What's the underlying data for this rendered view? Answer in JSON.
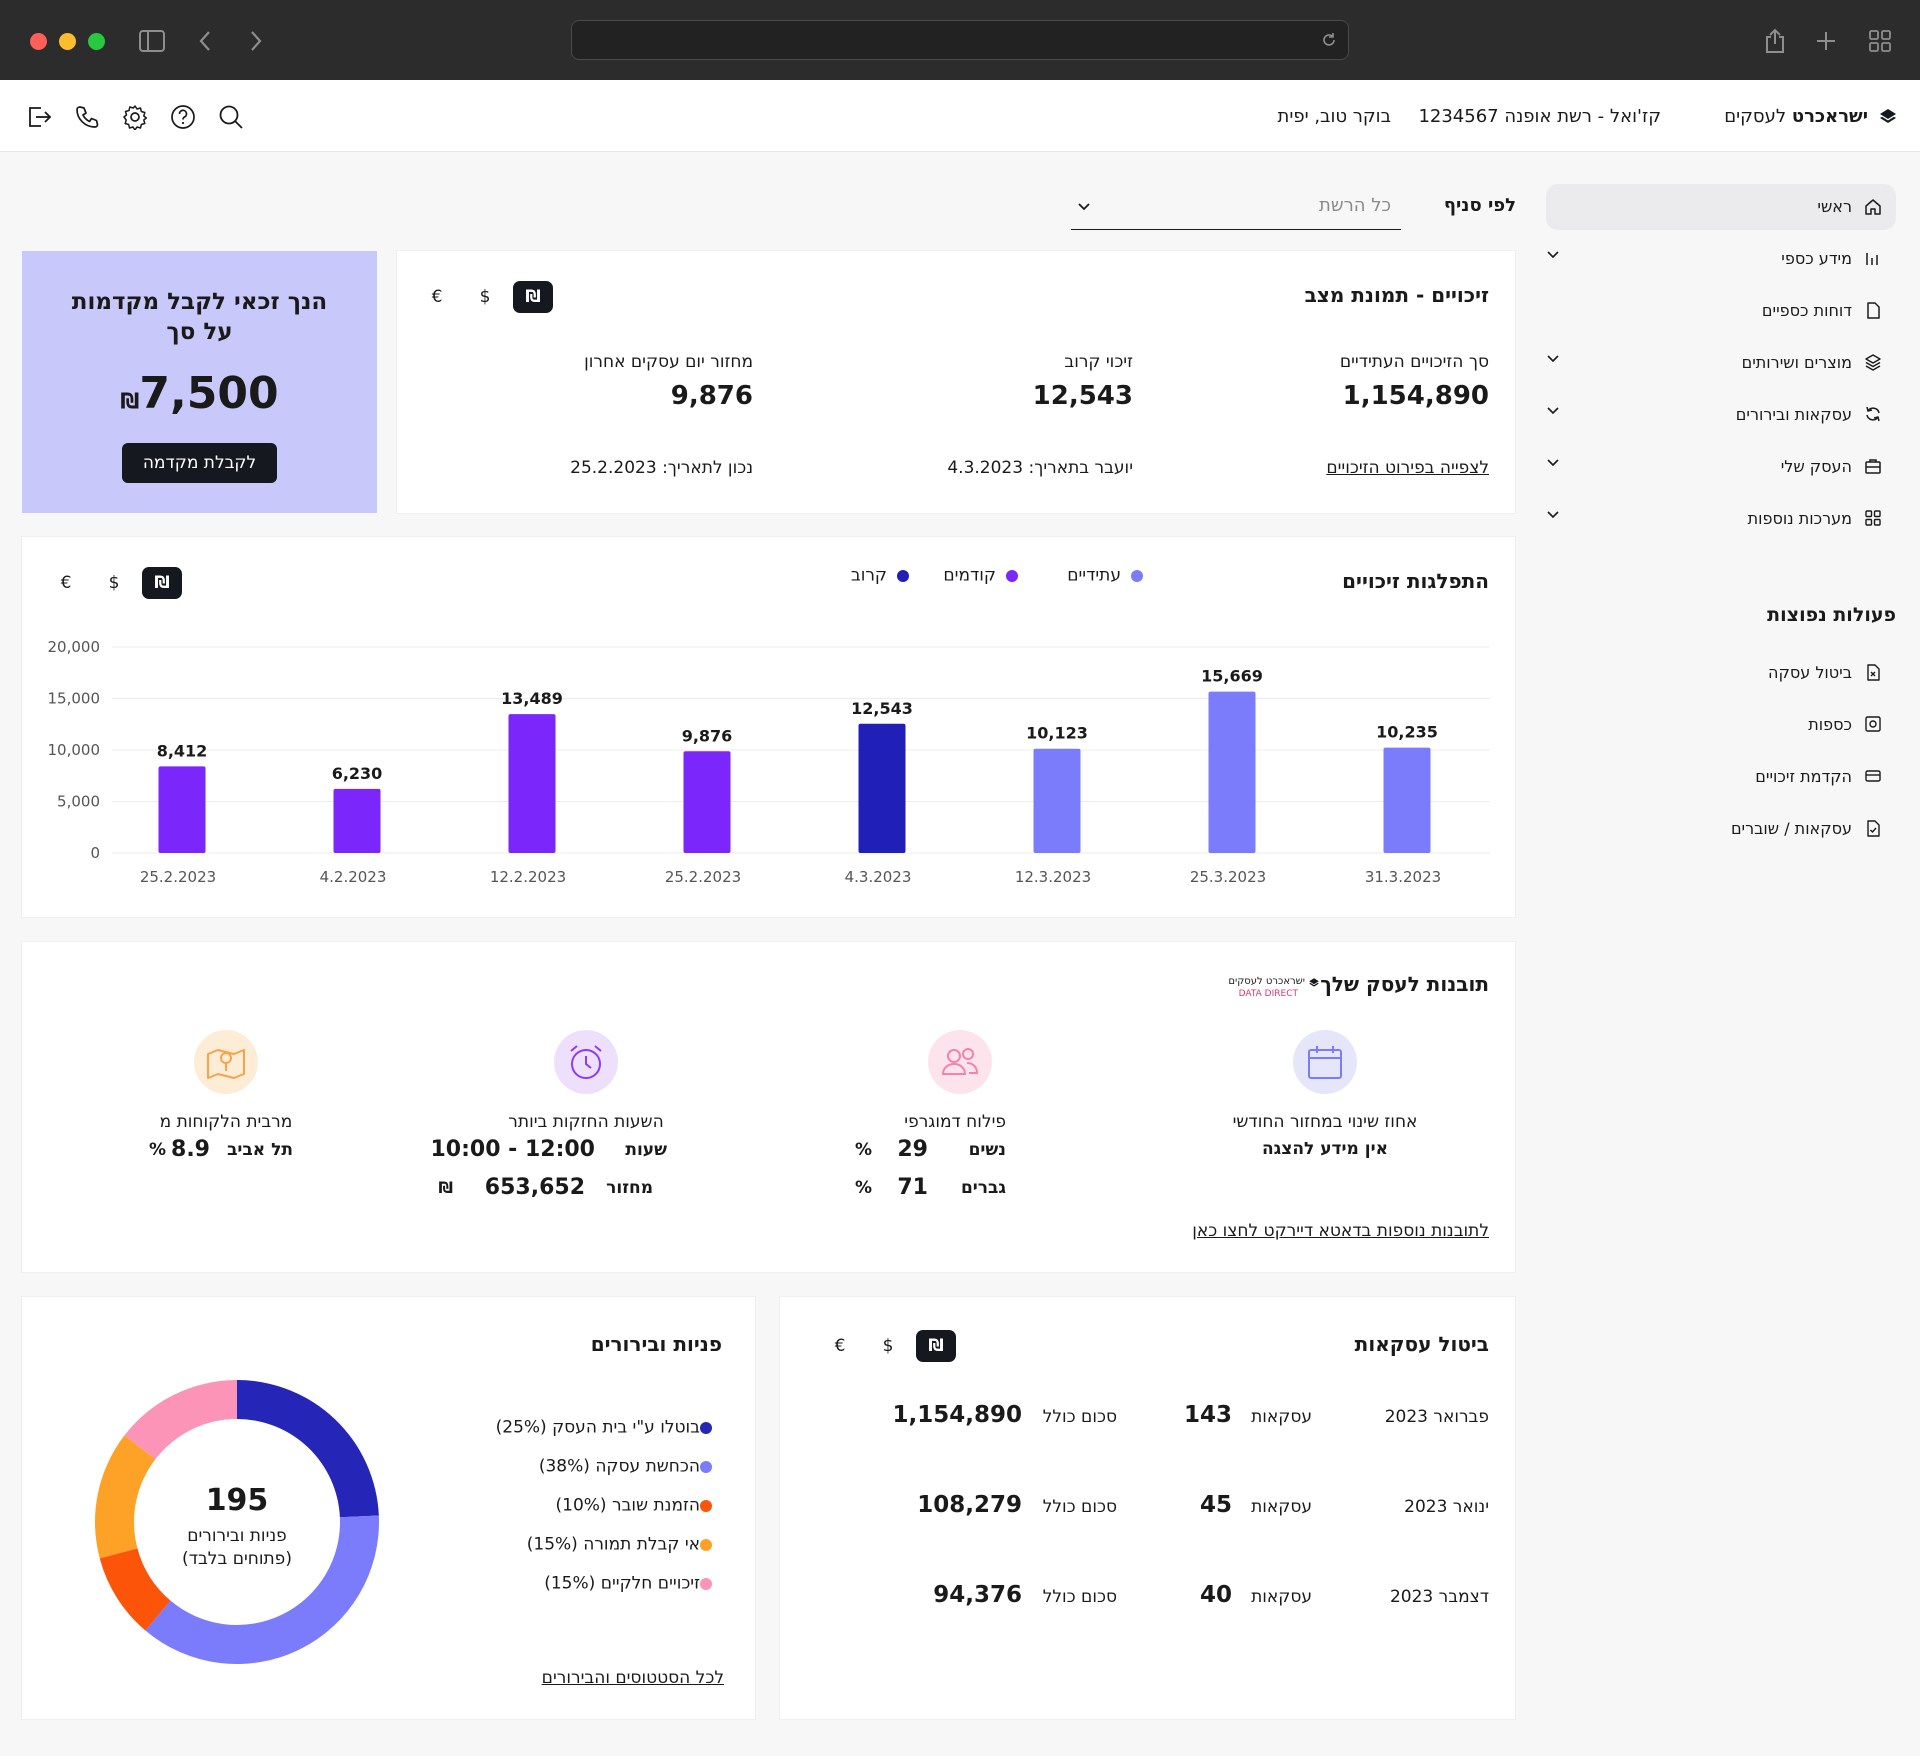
{
  "header": {
    "brand_bold": "ישראכרט",
    "brand_light": "לעסקים",
    "merchant": "קז'ואל - רשת אופנה 1234567",
    "greeting": "בוקר טוב, יפית"
  },
  "icons": {
    "toolbar": [
      "logout-icon",
      "phone-icon",
      "gear-icon",
      "help-icon",
      "search-icon"
    ],
    "chrome": [
      "sidebar-toggle-icon",
      "back-icon",
      "forward-icon",
      "reload-icon",
      "share-icon",
      "new-tab-icon",
      "tabs-grid-icon"
    ]
  },
  "sidebar": {
    "items": [
      {
        "label": "ראשי",
        "icon": "home-icon",
        "chevron": false
      },
      {
        "label": "מידע כספי",
        "icon": "bar-chart-icon",
        "chevron": true
      },
      {
        "label": "דוחות כספיים",
        "icon": "document-icon",
        "chevron": false
      },
      {
        "label": "מוצרים ושירותים",
        "icon": "layers-icon",
        "chevron": true
      },
      {
        "label": "עסקאות ובירורים",
        "icon": "refresh-icon",
        "chevron": true
      },
      {
        "label": "העסק שלי",
        "icon": "briefcase-icon",
        "chevron": true
      },
      {
        "label": "מערכות נוספות",
        "icon": "grid-icon",
        "chevron": true
      }
    ],
    "quick_title": "פעולות נפוצות",
    "quick": [
      {
        "label": "ביטול עסקה",
        "icon": "cancel-doc-icon"
      },
      {
        "label": "כספות",
        "icon": "safe-icon"
      },
      {
        "label": "הקדמת זיכויים",
        "icon": "card-icon"
      },
      {
        "label": "עסקאות / שוברים",
        "icon": "voucher-icon"
      }
    ]
  },
  "filter": {
    "label": "לפי סניף",
    "value": "כל הרשת"
  },
  "currency": [
    "₪",
    "$",
    "€"
  ],
  "credits": {
    "title": "זיכויים - תמונת מצב",
    "future_label": "סך הזיכויים העתידיים",
    "future_value": "1,154,890",
    "next_label": "זיכוי קרוב",
    "next_value": "12,543",
    "turnover_label": "מחזור יום עסקים אחרון",
    "turnover_value": "9,876",
    "details_link": "לצפייה בפירוט הזיכויים",
    "transfer_date": "יועבר בתאריך: 4.3.2023",
    "as_of_date": "נכון לתאריך: 25.2.2023"
  },
  "advance": {
    "title": "הנך זכאי לקבל מקדמות על סך",
    "amount": "7,500",
    "currency": "₪",
    "button": "לקבלת מקדמה"
  },
  "chart_data": {
    "type": "bar",
    "title": "התפלגות זיכויים",
    "categories": [
      "31.3.2023",
      "25.3.2023",
      "12.3.2023",
      "4.3.2023",
      "25.2.2023",
      "12.2.2023",
      "4.2.2023",
      "25.2.2023"
    ],
    "values": [
      10235,
      15669,
      10123,
      12543,
      9876,
      13489,
      6230,
      8412
    ],
    "value_labels": [
      "10,235",
      "15,669",
      "10,123",
      "12,543",
      "9,876",
      "13,489",
      "6,230",
      "8,412"
    ],
    "bar_series": [
      "future",
      "future",
      "future",
      "next",
      "past",
      "past",
      "past",
      "past"
    ],
    "legend": [
      {
        "key": "future",
        "name": "עתידיים",
        "color": "#7b7cfb"
      },
      {
        "key": "past",
        "name": "קודמים",
        "color": "#7b26fb"
      },
      {
        "key": "next",
        "name": "קרוב",
        "color": "#2020b8"
      }
    ],
    "yticks": [
      "20,000",
      "15,000",
      "10,000",
      "5,000",
      "0"
    ],
    "ylim": [
      0,
      20000
    ],
    "grid": true,
    "legend_position": "top"
  },
  "insights": {
    "title": "תובנות לעסק שלך",
    "logo_line1": "ישראכרט לעסקים",
    "logo_line2": "DATA DIRECT",
    "link": "לתובנות נוספות בדאטא דיירקט לחצו כאן",
    "blocks": [
      {
        "title": "אחוז שינוי במחזור החודשי",
        "icon": "calendar-icon",
        "line1_bold": "אין מידע להצגה"
      },
      {
        "title": "פילוח דמוגרפי",
        "icon": "users-icon",
        "r1_label": "נשים",
        "r1_value": "29",
        "r1_unit": "%",
        "r2_label": "גברים",
        "r2_value": "71",
        "r2_unit": "%"
      },
      {
        "title": "השעות החזקות ביותר",
        "icon": "alarm-icon",
        "r1_label": "שעות",
        "r1_value": "10:00 - 12:00",
        "r2_label": "מחזור",
        "r2_value": "653,652",
        "r2_unit": "₪"
      },
      {
        "title": "מרבית הלקוחות מ",
        "icon": "map-icon",
        "r1_label": "תל אביב",
        "r1_value": "8.9",
        "r1_unit": "%"
      }
    ]
  },
  "cancellations": {
    "title": "ביטול עסקאות",
    "rows": [
      {
        "month": "פברואר 2023",
        "count_label": "עסקאות",
        "count": "143",
        "sum_label": "סכום כולל",
        "sum": "1,154,890"
      },
      {
        "month": "ינואר 2023",
        "count_label": "עסקאות",
        "count": "45",
        "sum_label": "סכום כולל",
        "sum": "108,279"
      },
      {
        "month": "דצמבר 2023",
        "count_label": "עסקאות",
        "count": "40",
        "sum_label": "סכום כולל",
        "sum": "94,376"
      }
    ]
  },
  "inquiries": {
    "title": "פניות ובירורים",
    "total": "195",
    "center_line1": "פניות ובירורים",
    "center_line2": "(פתוחים בלבד)",
    "link": "לכל הסטטוסים והבירורים",
    "segments": [
      {
        "label": "(25%) בוטלו ע\"י בית העסק",
        "pct": 25,
        "color": "#2525b8"
      },
      {
        "label": "(38%) הכחשת עסקה",
        "pct": 38,
        "color": "#7b7cfb"
      },
      {
        "label": "(10%) הזמנת שובר",
        "pct": 10,
        "color": "#fc5409"
      },
      {
        "label": "(15%) אי קבלת תמורה",
        "pct": 15,
        "color": "#fda127"
      },
      {
        "label": "(15%) זיכויים חלקיים",
        "pct": 15,
        "color": "#fb94b6"
      }
    ]
  }
}
